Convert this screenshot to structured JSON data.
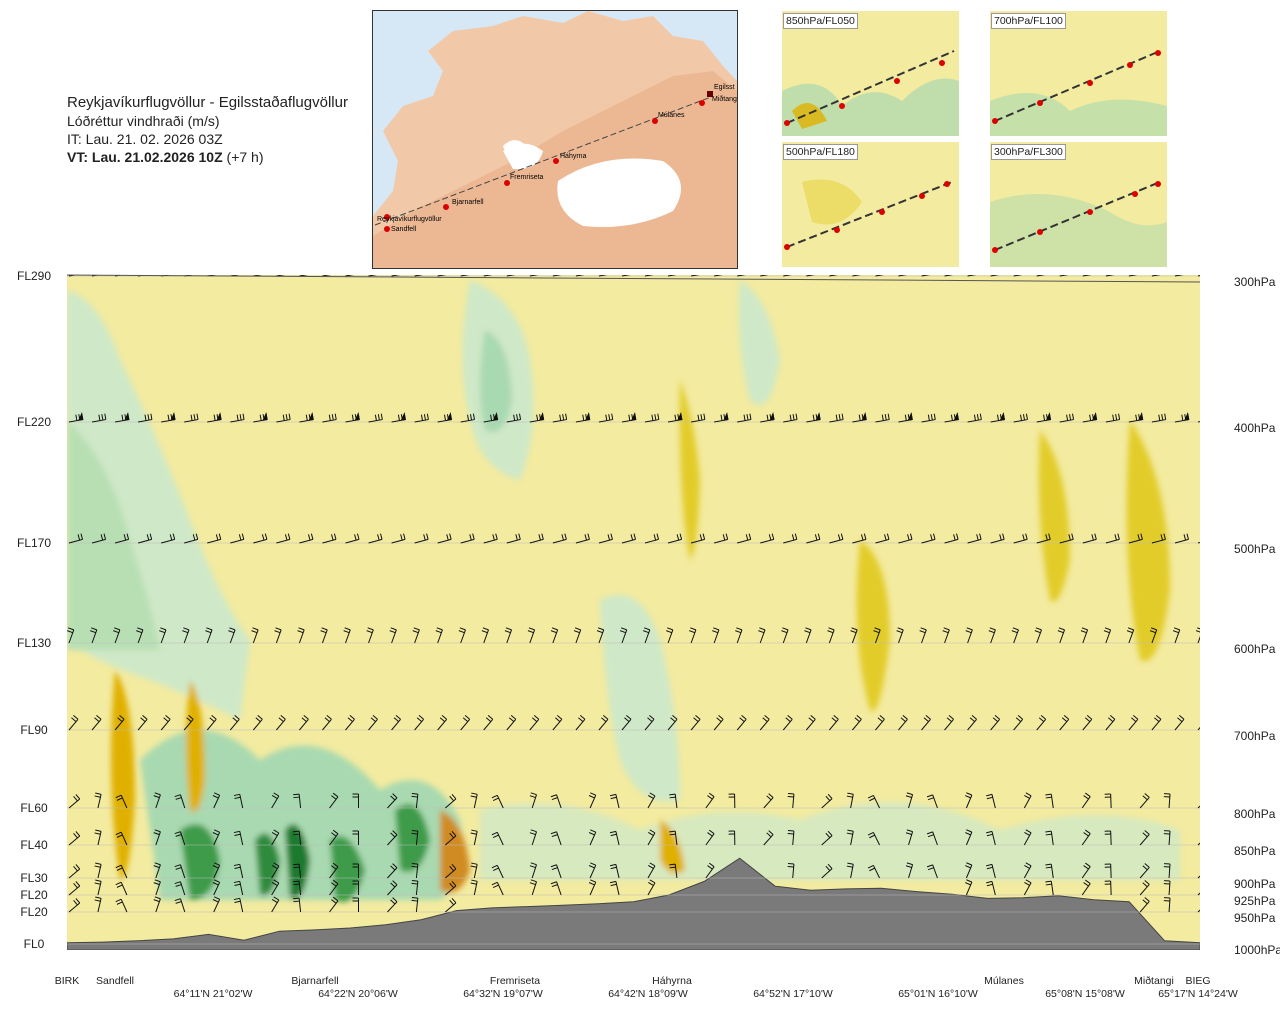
{
  "header": {
    "route": "Reykjavíkurflugvöllur - Egilsstaðaflugvöllur",
    "variable": "Lóðréttur vindhraði (m/s)",
    "it": "IT: Lau. 21. 02. 2026 03Z",
    "vt_bold": "VT: Lau. 21.02.2026 10Z",
    "vt_offset": " (+7 h)"
  },
  "map": {
    "waypoints": [
      "Reykjavíkurflugvöllur",
      "Sandfell",
      "Bjarnarfell",
      "Fremriseta",
      "Háhyrna",
      "Múlanes",
      "Egilsst",
      "Miðtangi"
    ]
  },
  "thumbnails": [
    {
      "label": "850hPa/FL050"
    },
    {
      "label": "700hPa/FL100"
    },
    {
      "label": "500hPa/FL180"
    },
    {
      "label": "300hPa/FL300"
    }
  ],
  "chart_data": {
    "type": "heatmap",
    "title": "Reykjavíkurflugvöllur - Egilsstaðaflugvöllur",
    "variable": "Lóðréttur vindhraði (m/s)",
    "colors": {
      "sink": "#2e8b3d",
      "neutral": "#f3eba0",
      "rise": "#e0b000",
      "terrain": "#7a7a7a"
    },
    "flight_levels": [
      "FL290",
      "FL220",
      "FL170",
      "FL130",
      "FL90",
      "FL60",
      "FL40",
      "FL30",
      "FL20",
      "FL20",
      "FL0"
    ],
    "pressure_levels": [
      "300hPa",
      "400hPa",
      "500hPa",
      "600hPa",
      "700hPa",
      "800hPa",
      "850hPa",
      "900hPa",
      "925hPa",
      "950hPa",
      "1000hPa"
    ],
    "pressure_values": [
      300,
      400,
      500,
      600,
      700,
      800,
      850,
      900,
      925,
      950,
      1000
    ],
    "locations": [
      "BIRK",
      "Sandfell",
      "Bjarnarfell",
      "Fremriseta",
      "Háhyrna",
      "Múlanes",
      "Miðtangi",
      "BIEG"
    ],
    "coordinates": [
      "64°11'N 21°02'W",
      "64°22'N 20°06'W",
      "64°32'N 19°07'W",
      "64°42'N 18°09'W",
      "64°52'N 17°10'W",
      "65°01'N 16°10'W",
      "65°08'N 15°08'W",
      "65°17'N 14°24'W"
    ],
    "terrain_profile_hpa": [
      998,
      997,
      995,
      992,
      985,
      994,
      980,
      978,
      975,
      970,
      962,
      948,
      944,
      942,
      940,
      938,
      935,
      925,
      905,
      870,
      912,
      918,
      916,
      915,
      920,
      924,
      930,
      929,
      926,
      932,
      935,
      995,
      998
    ]
  }
}
